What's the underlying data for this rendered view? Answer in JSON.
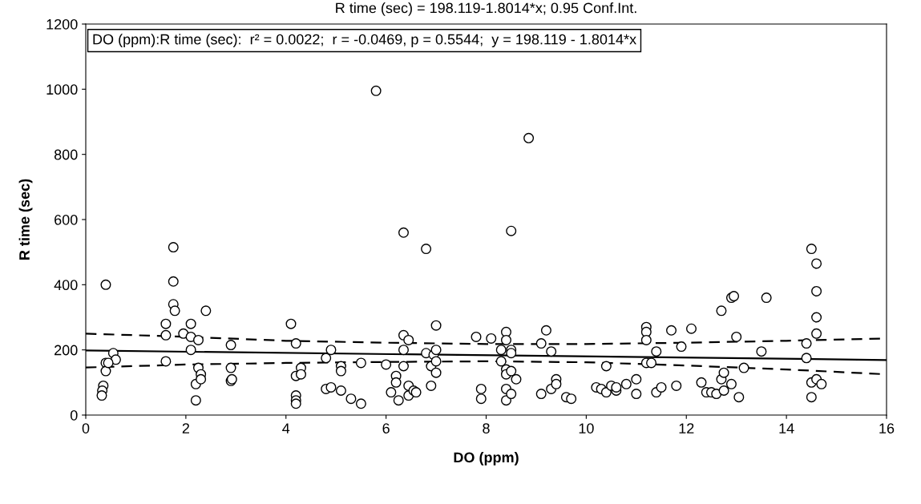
{
  "chart_data": {
    "type": "scatter",
    "title": "R time (sec) = 198.119-1.8014*x; 0.95 Conf.Int.",
    "xlabel": "DO (ppm)",
    "ylabel": "R time (sec)",
    "annotations": [
      "DO (ppm):R time (sec):  r² = 0.0022;  r = -0.0469, p = 0.5544;  y = 198.119 - 1.8014*x"
    ],
    "xlim": [
      0,
      16
    ],
    "ylim": [
      0,
      1200
    ],
    "xticks": [
      0,
      2,
      4,
      6,
      8,
      10,
      12,
      14,
      16
    ],
    "yticks": [
      0,
      200,
      400,
      600,
      800,
      1000,
      1200
    ],
    "grid": false,
    "marker": "circle",
    "series": [
      {
        "color": "#000000",
        "x": [
          0.4,
          0.4,
          0.4,
          0.35,
          0.33,
          0.32,
          0.55,
          0.6,
          0.45,
          1.6,
          1.6,
          1.6,
          1.75,
          1.75,
          1.75,
          1.78,
          1.95,
          2.1,
          2.1,
          2.1,
          2.2,
          2.2,
          2.25,
          2.25,
          2.3,
          2.3,
          2.4,
          2.9,
          2.9,
          2.9,
          2.92,
          4.1,
          4.2,
          4.2,
          4.2,
          4.2,
          4.2,
          4.3,
          4.3,
          4.8,
          4.8,
          4.9,
          4.9,
          5.1,
          5.1,
          5.1,
          5.3,
          5.5,
          5.5,
          5.8,
          6.0,
          6.1,
          6.2,
          6.2,
          6.25,
          6.35,
          6.35,
          6.35,
          6.35,
          6.45,
          6.45,
          6.45,
          6.55,
          6.6,
          6.8,
          6.8,
          6.9,
          6.9,
          6.95,
          7.0,
          7.0,
          7.0,
          7.0,
          7.8,
          7.9,
          7.9,
          8.1,
          8.3,
          8.3,
          8.4,
          8.4,
          8.4,
          8.4,
          8.4,
          8.4,
          8.5,
          8.5,
          8.5,
          8.5,
          8.5,
          8.6,
          8.85,
          9.1,
          9.1,
          9.2,
          9.3,
          9.3,
          9.4,
          9.4,
          9.6,
          9.7,
          10.2,
          10.3,
          10.4,
          10.4,
          10.5,
          10.6,
          10.6,
          10.8,
          11.0,
          11.0,
          11.2,
          11.2,
          11.2,
          11.2,
          11.3,
          11.4,
          11.4,
          11.5,
          11.7,
          11.8,
          11.9,
          12.1,
          12.3,
          12.4,
          12.5,
          12.6,
          12.7,
          12.7,
          12.75,
          12.75,
          12.9,
          12.9,
          12.95,
          13.0,
          13.05,
          13.15,
          13.5,
          13.6,
          14.4,
          14.4,
          14.5,
          14.5,
          14.5,
          14.6,
          14.6,
          14.6,
          14.6,
          14.6,
          14.7
        ],
        "values": [
          400,
          160,
          135,
          90,
          75,
          60,
          190,
          170,
          160,
          280,
          245,
          165,
          515,
          410,
          340,
          320,
          250,
          280,
          240,
          200,
          95,
          45,
          230,
          145,
          125,
          110,
          320,
          215,
          145,
          105,
          110,
          280,
          220,
          120,
          60,
          45,
          35,
          145,
          125,
          175,
          80,
          200,
          85,
          150,
          135,
          75,
          50,
          160,
          35,
          995,
          155,
          70,
          120,
          100,
          45,
          560,
          245,
          200,
          150,
          230,
          90,
          60,
          75,
          70,
          510,
          190,
          150,
          90,
          185,
          275,
          165,
          200,
          130,
          240,
          80,
          50,
          235,
          200,
          165,
          255,
          230,
          140,
          125,
          80,
          45,
          565,
          200,
          190,
          135,
          65,
          110,
          850,
          65,
          220,
          260,
          195,
          80,
          110,
          95,
          55,
          50,
          85,
          80,
          150,
          70,
          90,
          75,
          85,
          95,
          110,
          65,
          270,
          255,
          230,
          160,
          160,
          70,
          195,
          85,
          260,
          90,
          210,
          265,
          100,
          70,
          70,
          65,
          320,
          110,
          130,
          75,
          360,
          95,
          365,
          240,
          55,
          145,
          195,
          360,
          220,
          175,
          510,
          100,
          55,
          110,
          465,
          380,
          300,
          250,
          95
        ]
      },
      {
        "type": "line",
        "color": "#000000",
        "marker": "none",
        "line_style": "solid",
        "x": [
          0,
          16
        ],
        "values": [
          198,
          169
        ]
      },
      {
        "type": "line",
        "color": "#000000",
        "marker": "none",
        "line_style": "dashed",
        "x": [
          0,
          2,
          4,
          6,
          8,
          10,
          12,
          14,
          16
        ],
        "values": [
          250,
          240,
          228,
          222,
          218,
          218,
          222,
          228,
          235
        ]
      },
      {
        "type": "line",
        "color": "#000000",
        "marker": "none",
        "line_style": "dashed",
        "x": [
          0,
          2,
          4,
          6,
          8,
          10,
          12,
          14,
          16
        ],
        "values": [
          146,
          155,
          160,
          163,
          165,
          162,
          152,
          140,
          125
        ]
      }
    ]
  }
}
